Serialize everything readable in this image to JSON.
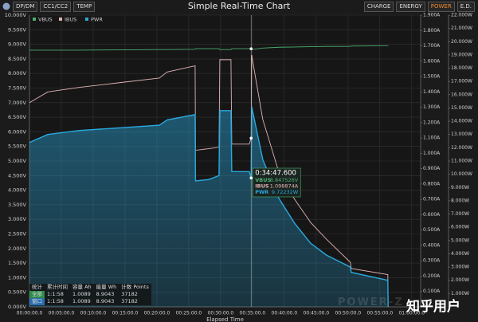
{
  "toolbar": {
    "left_tabs": [
      {
        "label": "DP/DM",
        "active": false
      },
      {
        "label": "CC1/CC2",
        "active": false
      },
      {
        "label": "TEMP",
        "active": false
      }
    ],
    "right_tabs": [
      {
        "label": "CHARGE",
        "active": false
      },
      {
        "label": "ENERGY",
        "active": false
      },
      {
        "label": "POWER",
        "active": true
      },
      {
        "label": "E.D.",
        "active": false
      }
    ]
  },
  "chart_data": {
    "type": "line",
    "title": "Simple Real-Time Chart",
    "x_label": "Elapsed Time",
    "x": [
      0,
      2.875,
      7.875,
      14.125,
      20.375,
      21.625,
      26,
      26.06,
      28.125,
      29.75,
      29.875,
      31.625,
      31.75,
      34.5,
      34.793,
      34.875,
      36.625,
      39.125,
      41.625,
      44.125,
      46.625,
      50.375,
      50.5,
      56.25,
      56.3
    ],
    "series": [
      {
        "name": "VBUS",
        "color": "#4caf70",
        "axis": "y",
        "values": [
          8.8,
          8.8,
          8.8,
          8.81,
          8.82,
          8.82,
          8.83,
          8.85,
          8.85,
          8.85,
          8.82,
          8.82,
          8.85,
          8.85,
          8.847526,
          8.82,
          8.87,
          8.9,
          8.91,
          8.92,
          8.93,
          8.93,
          8.94,
          8.95,
          8.96
        ]
      },
      {
        "name": "IBUS",
        "color": "#e2b3b6",
        "axis": "y2",
        "values": [
          1.33,
          1.4,
          1.43,
          1.46,
          1.49,
          1.53,
          1.57,
          1.02,
          1.03,
          1.04,
          1.61,
          1.61,
          1.06,
          1.06,
          1.098874,
          1.64,
          1.22,
          0.88,
          0.7,
          0.55,
          0.44,
          0.29,
          0.25,
          0.21,
          0
        ]
      },
      {
        "name": "PWR",
        "color": "#2aa9e0",
        "axis": "y3",
        "area": true,
        "values": [
          12.4,
          13.0,
          13.3,
          13.5,
          13.7,
          14.1,
          14.5,
          9.5,
          9.6,
          9.9,
          14.8,
          14.8,
          10.2,
          10.2,
          9.72232,
          15.1,
          11.1,
          8.2,
          6.3,
          4.8,
          3.9,
          3.0,
          2.6,
          2.0,
          0
        ]
      }
    ],
    "cursor": {
      "x": 34.793,
      "label": "0:34:47.600",
      "value_labels": [
        "8.847526V",
        "1.098874A",
        "9.72232W"
      ]
    },
    "xlim": [
      0,
      61.4
    ],
    "xticks": [
      {
        "value": 0,
        "label": "00:00:00.0"
      },
      {
        "value": 5,
        "label": "00:05:00.0"
      },
      {
        "value": 10,
        "label": "00:10:00.0"
      },
      {
        "value": 15,
        "label": "00:15:00.0"
      },
      {
        "value": 20,
        "label": "00:20:00.0"
      },
      {
        "value": 25,
        "label": "00:25:00.0"
      },
      {
        "value": 30,
        "label": "00:30:00.0"
      },
      {
        "value": 35,
        "label": "00:35:00.0"
      },
      {
        "value": 40,
        "label": "00:40:00.0"
      },
      {
        "value": 45,
        "label": "00:45:00.0"
      },
      {
        "value": 50,
        "label": "00:50:00.0"
      },
      {
        "value": 55,
        "label": "00:55:00.0"
      },
      {
        "value": 60,
        "label": "01:00:00.0"
      }
    ],
    "ylim": [
      0,
      10
    ],
    "yticks": [
      {
        "value": 0,
        "label": "0.000V"
      },
      {
        "value": 0.5,
        "label": "0.500V"
      },
      {
        "value": 1,
        "label": "1.000V"
      },
      {
        "value": 1.5,
        "label": "1.500V"
      },
      {
        "value": 2,
        "label": "2.000V"
      },
      {
        "value": 2.5,
        "label": "2.500V"
      },
      {
        "value": 3,
        "label": "3.000V"
      },
      {
        "value": 3.5,
        "label": "3.500V"
      },
      {
        "value": 4,
        "label": "4.000V"
      },
      {
        "value": 4.5,
        "label": "4.500V"
      },
      {
        "value": 5,
        "label": "5.000V"
      },
      {
        "value": 5.5,
        "label": "5.500V"
      },
      {
        "value": 6,
        "label": "6.000V"
      },
      {
        "value": 6.5,
        "label": "6.500V"
      },
      {
        "value": 7,
        "label": "7.000V"
      },
      {
        "value": 7.5,
        "label": "7.500V"
      },
      {
        "value": 8,
        "label": "8.000V"
      },
      {
        "value": 8.5,
        "label": "8.500V"
      },
      {
        "value": 9,
        "label": "9.000V"
      },
      {
        "value": 9.5,
        "label": "9.500V"
      },
      {
        "value": 10,
        "label": "10.000V"
      }
    ],
    "y2lim": [
      0,
      1.9
    ],
    "y2ticks": [
      {
        "value": 0.1,
        "label": "0.100A"
      },
      {
        "value": 0.2,
        "label": "0.200A"
      },
      {
        "value": 0.3,
        "label": "0.300A"
      },
      {
        "value": 0.4,
        "label": "0.400A"
      },
      {
        "value": 0.5,
        "label": "0.500A"
      },
      {
        "value": 0.6,
        "label": "0.600A"
      },
      {
        "value": 0.7,
        "label": "0.700A"
      },
      {
        "value": 0.8,
        "label": "0.800A"
      },
      {
        "value": 0.9,
        "label": "0.900A"
      },
      {
        "value": 1,
        "label": "1.000A"
      },
      {
        "value": 1.1,
        "label": "1.100A"
      },
      {
        "value": 1.2,
        "label": "1.200A"
      },
      {
        "value": 1.3,
        "label": "1.300A"
      },
      {
        "value": 1.4,
        "label": "1.400A"
      },
      {
        "value": 1.5,
        "label": "1.500A"
      },
      {
        "value": 1.6,
        "label": "1.600A"
      },
      {
        "value": 1.7,
        "label": "1.700A"
      },
      {
        "value": 1.8,
        "label": "1.800A"
      },
      {
        "value": 1.9,
        "label": "1.900A"
      }
    ],
    "y3lim": [
      0,
      22
    ],
    "y3ticks": [
      {
        "value": 1,
        "label": "1.000W"
      },
      {
        "value": 2,
        "label": "2.000W"
      },
      {
        "value": 3,
        "label": "3.000W"
      },
      {
        "value": 4,
        "label": "4.000W"
      },
      {
        "value": 5,
        "label": "5.000W"
      },
      {
        "value": 6,
        "label": "6.000W"
      },
      {
        "value": 7,
        "label": "7.000W"
      },
      {
        "value": 8,
        "label": "8.000W"
      },
      {
        "value": 9,
        "label": "9.000W"
      },
      {
        "value": 10,
        "label": "10.000W"
      },
      {
        "value": 11,
        "label": "11.000W"
      },
      {
        "value": 12,
        "label": "12.000W"
      },
      {
        "value": 13,
        "label": "13.000W"
      },
      {
        "value": 14,
        "label": "14.000W"
      },
      {
        "value": 15,
        "label": "15.000W"
      },
      {
        "value": 16,
        "label": "16.000W"
      },
      {
        "value": 17,
        "label": "17.000W"
      },
      {
        "value": 18,
        "label": "18.000W"
      },
      {
        "value": 19,
        "label": "19.000W"
      },
      {
        "value": 20,
        "label": "20.000W"
      },
      {
        "value": 21,
        "label": "21.000W"
      },
      {
        "value": 22,
        "label": "22.000W"
      }
    ],
    "grid": true,
    "legend": "top-left"
  },
  "stats": {
    "header": [
      "统计",
      "累计时间",
      "容量 Ah",
      "能量 Wh",
      "计数 Points"
    ],
    "rows": [
      [
        "全部",
        "1:1:58",
        "1.0089",
        "8.9043",
        "37182"
      ],
      [
        "窗口",
        "1:1:58",
        "1.0089",
        "8.9043",
        "37182"
      ]
    ]
  },
  "watermark": "POWER-Z",
  "credit": "知乎用户"
}
